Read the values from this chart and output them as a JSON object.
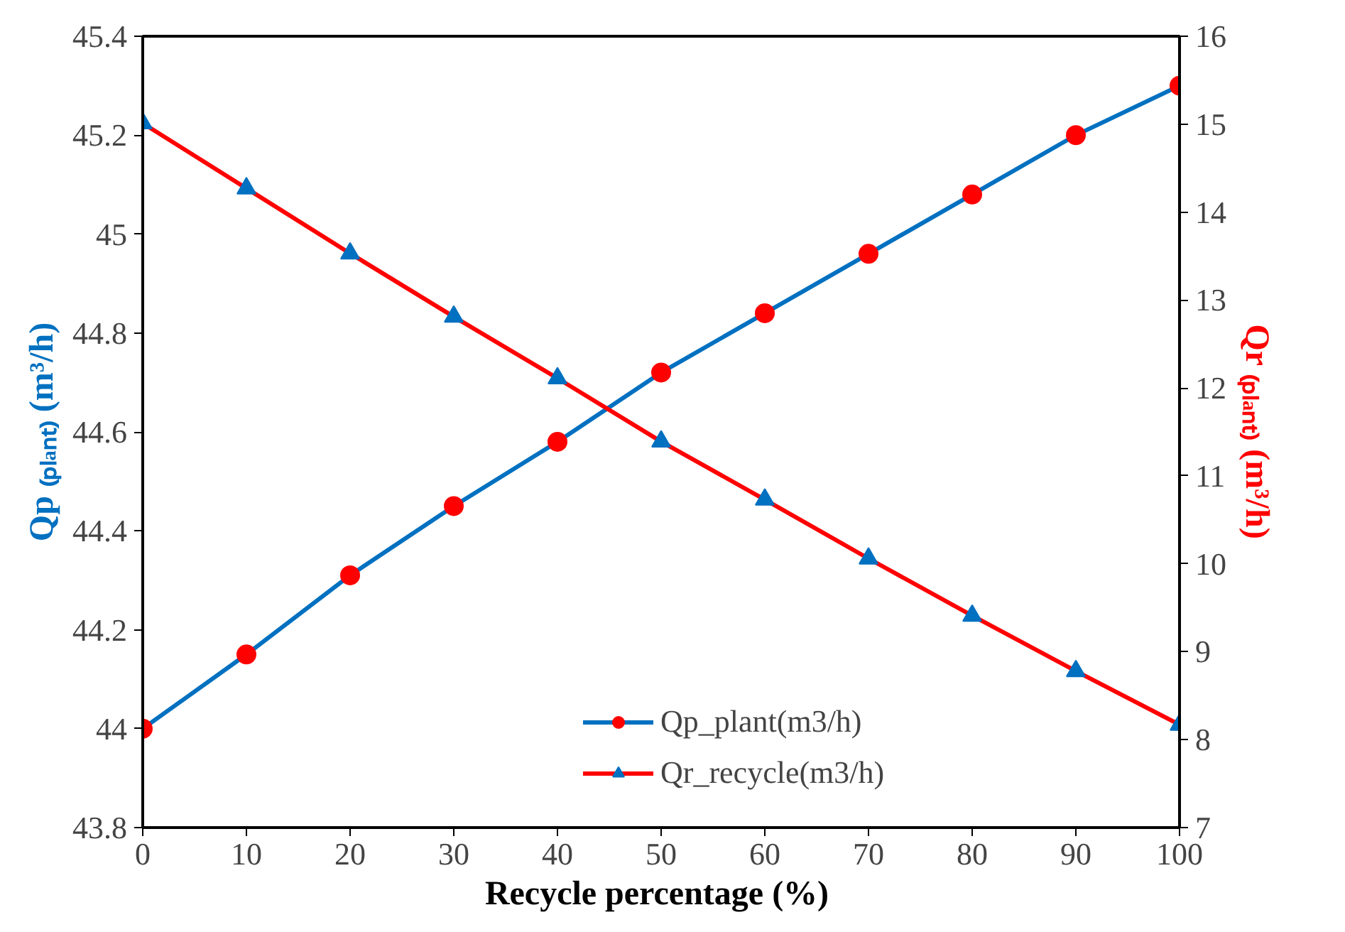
{
  "chart_data": {
    "type": "line",
    "xlabel": "Recycle  percentage (%)",
    "ylabel": "Qp ₍ₚₗₐₙₜ₎ (m³/h)",
    "y2label": "Qr ₍ₚₗₐₙₜ₎ (m³/h)",
    "x": [
      0,
      10,
      20,
      30,
      40,
      50,
      60,
      70,
      80,
      90,
      100
    ],
    "series": [
      {
        "name": "Qp_plant(m3/h)",
        "color": "#0070c0",
        "marker": "circle",
        "colors": [
          "#ff0000",
          "#ff0000",
          "#ff0000",
          "#ff0000",
          "#ff0000",
          "#ff0000",
          "#ff0000",
          "#ff0000",
          "#ff0000",
          "#ff0000",
          "#ff0000"
        ],
        "values": [
          44.0,
          44.15,
          44.31,
          44.45,
          44.58,
          44.72,
          44.84,
          44.96,
          45.08,
          45.2,
          45.3
        ]
      },
      {
        "name": "Qr_recycle(m3/h)",
        "color": "#ff0000",
        "marker": "triangle",
        "axis": "y2",
        "colors": [
          "#0070c0",
          "#0070c0",
          "#0070c0",
          "#0070c0",
          "#0070c0",
          "#0070c0",
          "#0070c0",
          "#0070c0",
          "#0070c0",
          "#0070c0",
          "#0070c0"
        ],
        "values": [
          15.01,
          14.27,
          13.53,
          12.81,
          12.11,
          11.39,
          10.73,
          10.06,
          9.41,
          8.78,
          8.17
        ]
      }
    ],
    "xlim": [
      0,
      100
    ],
    "xticks": [
      0,
      10,
      20,
      30,
      40,
      50,
      60,
      70,
      80,
      90,
      100
    ],
    "ylim": [
      43.8,
      45.4
    ],
    "yticks": [
      43.8,
      44,
      44.2,
      44.4,
      44.6,
      44.8,
      45,
      45.2,
      45.4
    ],
    "y2lim": [
      7,
      16
    ],
    "y2ticks": [
      7,
      8,
      9,
      10,
      11,
      12,
      13,
      14,
      15,
      16
    ],
    "grid": false,
    "legend": "bottom"
  }
}
